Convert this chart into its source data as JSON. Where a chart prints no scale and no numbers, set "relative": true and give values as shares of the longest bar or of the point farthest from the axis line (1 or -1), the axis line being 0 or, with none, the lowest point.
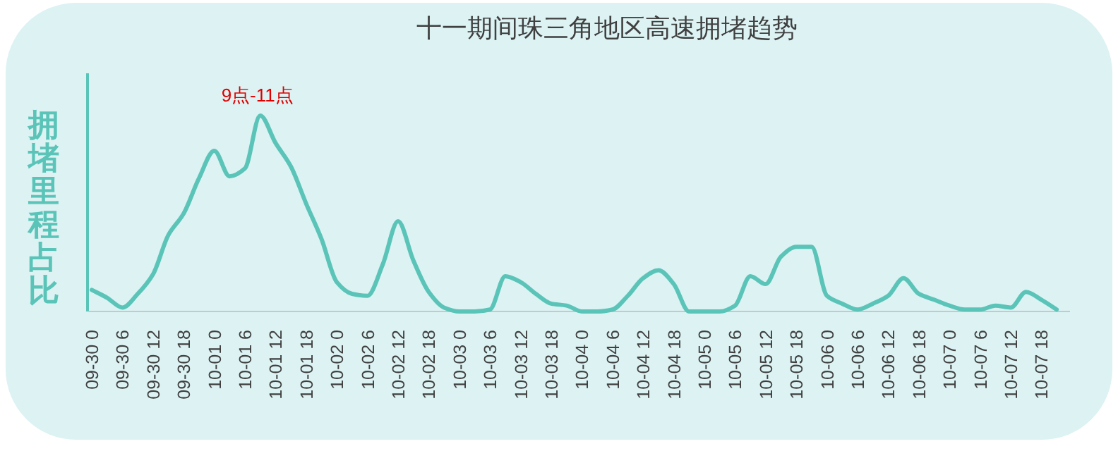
{
  "chart_data": {
    "type": "line",
    "title": "十一期间珠三角地区高速拥堵趋势",
    "ylabel": "拥堵里程占比",
    "relative": true,
    "color": "#5bc4b8",
    "annotations": [
      "9点-11点"
    ],
    "categories": [
      "09-30 0",
      null,
      "09-30 6",
      null,
      "09-30 12",
      null,
      "09-30 18",
      null,
      "10-01 0",
      null,
      "10-01 6",
      null,
      "10-01 12",
      null,
      "10-01 18",
      null,
      "10-02 0",
      null,
      "10-02 6",
      null,
      "10-02 12",
      null,
      "10-02 18",
      null,
      "10-03 0",
      null,
      "10-03 6",
      null,
      "10-03 12",
      null,
      "10-03 18",
      null,
      "10-04 0",
      null,
      "10-04 6",
      null,
      "10-04 12",
      null,
      "10-04 18",
      null,
      "10-05 0",
      null,
      "10-05 6",
      null,
      "10-05 12",
      null,
      "10-05 18",
      null,
      "10-06 0",
      null,
      "10-06 6",
      null,
      "10-06 12",
      null,
      "10-06 18",
      null,
      "10-07 0",
      null,
      "10-07 6",
      null,
      "10-07 12",
      null,
      "10-07 18",
      null
    ],
    "values": [
      0.11,
      0.07,
      0.02,
      0.09,
      0.19,
      0.39,
      0.5,
      0.68,
      0.82,
      0.69,
      0.73,
      1,
      0.86,
      0.74,
      0.55,
      0.37,
      0.15,
      0.09,
      0.08,
      0.24,
      0.46,
      0.26,
      0.1,
      0.02,
      0,
      0,
      0.01,
      0.18,
      0.15,
      0.09,
      0.04,
      0.03,
      0,
      0,
      0.01,
      0.08,
      0.17,
      0.21,
      0.14,
      0,
      0,
      0,
      0.03,
      0.18,
      0.14,
      0.28,
      0.33,
      0.33,
      0.08,
      0.04,
      0.01,
      0.04,
      0.08,
      0.17,
      0.09,
      0.06,
      0.03,
      0.01,
      0.01,
      0.03,
      0.02,
      0.1,
      0.06,
      0.01
    ]
  }
}
